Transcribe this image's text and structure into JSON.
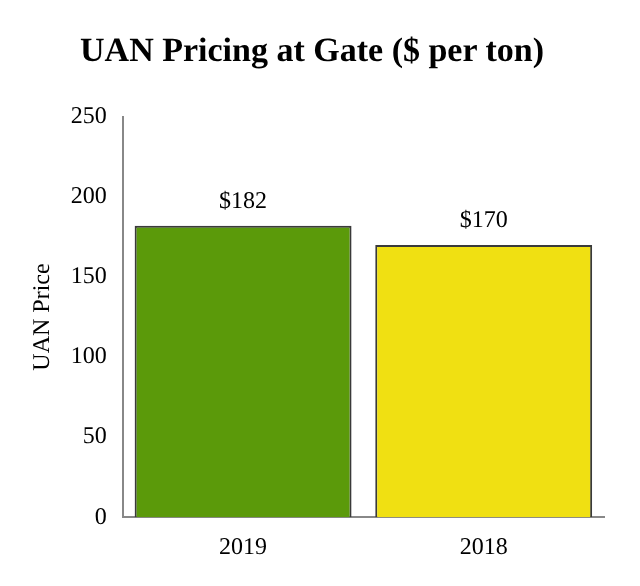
{
  "chart_data": {
    "type": "bar",
    "title": "UAN Pricing at Gate ($ per ton)",
    "ylabel": "UAN Price",
    "categories": [
      "2019",
      "2018"
    ],
    "values": [
      182,
      170
    ],
    "colors": [
      "#5b9a0a",
      "#f0e012"
    ],
    "value_labels": [
      "$182",
      "$170"
    ],
    "ylim": [
      0,
      250
    ],
    "yticks": [
      0,
      50,
      100,
      150,
      200,
      250
    ],
    "grid": false,
    "legend": false
  }
}
